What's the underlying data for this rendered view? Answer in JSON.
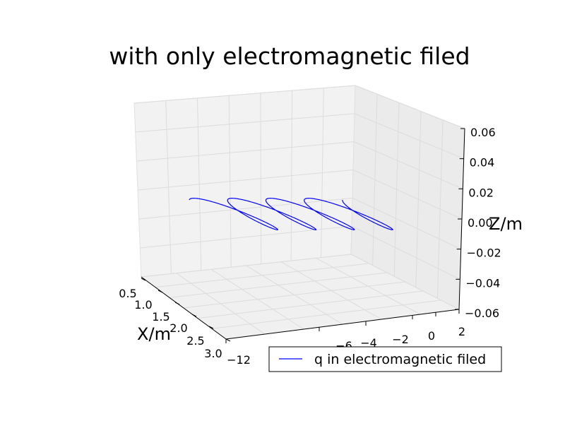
{
  "chart_data": {
    "type": "line",
    "projection": "3d",
    "title": "with only electromagnetic filed",
    "xlabel": "X/m",
    "ylabel": "",
    "zlabel": "Z/m",
    "x_ticks": [
      "0.5",
      "1.0",
      "1.5",
      "2.0",
      "2.5",
      "3.0"
    ],
    "y_ticks": [
      "−12",
      "−6",
      "−4",
      "−2",
      "0",
      "2"
    ],
    "z_ticks": [
      "0.06",
      "0.04",
      "0.02",
      "0.00",
      "−0.02",
      "−0.04",
      "−0.06"
    ],
    "grid": true,
    "legend_position": "bottom-right",
    "series": [
      {
        "name": "q in electromagnetic filed",
        "color": "#0000ff",
        "description_values": {
          "loops": 4,
          "y_start": -10.5,
          "y_end": 0.5,
          "amplitude_z": 0.02,
          "amplitude_x": 1.0,
          "x_center": 1.75
        }
      }
    ]
  }
}
